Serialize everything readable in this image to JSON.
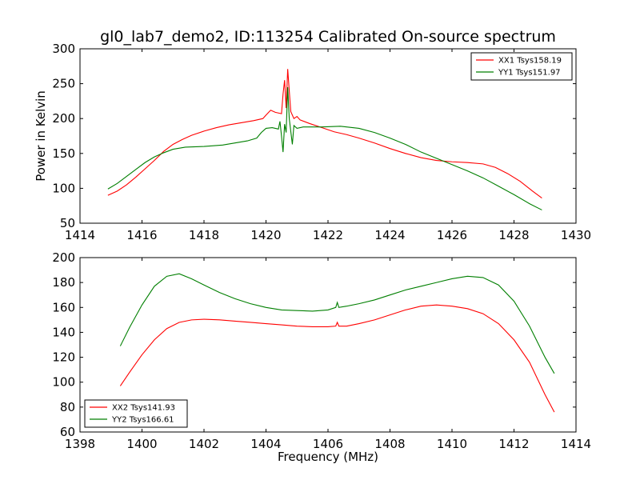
{
  "figure": {
    "title": "gl0_lab7_demo2, ID:113254 Calibrated On-source spectrum",
    "xlabel": "Frequency (MHz)"
  },
  "colors": {
    "red": "#ff0000",
    "green": "#007f00",
    "axes": "#000000"
  },
  "chart_data": [
    {
      "type": "line",
      "title": "gl0_lab7_demo2, ID:113254 Calibrated On-source spectrum",
      "xlabel": "",
      "ylabel": "Power in Kelvin",
      "xlim": [
        1414,
        1430
      ],
      "ylim": [
        50,
        300
      ],
      "xticks": [
        1414,
        1416,
        1418,
        1420,
        1422,
        1424,
        1426,
        1428,
        1430
      ],
      "yticks": [
        50,
        100,
        150,
        200,
        250,
        300
      ],
      "legend": "top-right",
      "grid": false,
      "series": [
        {
          "name": "XX1 Tsys158.19",
          "color": "#ff0000",
          "points": [
            [
              1414.9,
              90
            ],
            [
              1415.2,
              96
            ],
            [
              1415.5,
              105
            ],
            [
              1415.8,
              116
            ],
            [
              1416.1,
              128
            ],
            [
              1416.4,
              140
            ],
            [
              1416.7,
              153
            ],
            [
              1417.0,
              163
            ],
            [
              1417.3,
              170
            ],
            [
              1417.6,
              176
            ],
            [
              1418.0,
              182
            ],
            [
              1418.4,
              187
            ],
            [
              1418.8,
              191
            ],
            [
              1419.2,
              194
            ],
            [
              1419.6,
              197
            ],
            [
              1419.9,
              200
            ],
            [
              1420.0,
              205
            ],
            [
              1420.15,
              212
            ],
            [
              1420.3,
              209
            ],
            [
              1420.5,
              207
            ],
            [
              1420.55,
              235
            ],
            [
              1420.6,
              255
            ],
            [
              1420.65,
              215
            ],
            [
              1420.7,
              271
            ],
            [
              1420.75,
              240
            ],
            [
              1420.8,
              210
            ],
            [
              1420.9,
              200
            ],
            [
              1421.0,
              203
            ],
            [
              1421.1,
              198
            ],
            [
              1421.4,
              193
            ],
            [
              1421.8,
              187
            ],
            [
              1422.2,
              181
            ],
            [
              1422.6,
              177
            ],
            [
              1423.0,
              172
            ],
            [
              1423.5,
              165
            ],
            [
              1424.0,
              157
            ],
            [
              1424.5,
              150
            ],
            [
              1425.0,
              144
            ],
            [
              1425.5,
              140
            ],
            [
              1426.0,
              138
            ],
            [
              1426.5,
              137
            ],
            [
              1427.0,
              135
            ],
            [
              1427.4,
              130
            ],
            [
              1427.8,
              121
            ],
            [
              1428.2,
              110
            ],
            [
              1428.6,
              96
            ],
            [
              1428.9,
              86
            ]
          ]
        },
        {
          "name": "YY1 Tsys151.97",
          "color": "#007f00",
          "points": [
            [
              1414.9,
              99
            ],
            [
              1415.2,
              107
            ],
            [
              1415.5,
              117
            ],
            [
              1415.8,
              127
            ],
            [
              1416.1,
              137
            ],
            [
              1416.4,
              145
            ],
            [
              1416.7,
              151
            ],
            [
              1417.0,
              156
            ],
            [
              1417.4,
              159
            ],
            [
              1418.0,
              160
            ],
            [
              1418.6,
              162
            ],
            [
              1419.0,
              165
            ],
            [
              1419.4,
              168
            ],
            [
              1419.7,
              172
            ],
            [
              1419.85,
              180
            ],
            [
              1420.0,
              186
            ],
            [
              1420.2,
              187
            ],
            [
              1420.4,
              185
            ],
            [
              1420.45,
              196
            ],
            [
              1420.5,
              175
            ],
            [
              1420.55,
              152
            ],
            [
              1420.6,
              192
            ],
            [
              1420.65,
              180
            ],
            [
              1420.7,
              245
            ],
            [
              1420.75,
              200
            ],
            [
              1420.85,
              163
            ],
            [
              1420.9,
              190
            ],
            [
              1421.0,
              186
            ],
            [
              1421.2,
              188
            ],
            [
              1421.8,
              188
            ],
            [
              1422.4,
              189
            ],
            [
              1423.0,
              186
            ],
            [
              1423.5,
              180
            ],
            [
              1424.0,
              172
            ],
            [
              1424.5,
              163
            ],
            [
              1425.0,
              152
            ],
            [
              1425.5,
              143
            ],
            [
              1426.0,
              134
            ],
            [
              1426.5,
              125
            ],
            [
              1427.0,
              115
            ],
            [
              1427.5,
              103
            ],
            [
              1428.0,
              91
            ],
            [
              1428.5,
              78
            ],
            [
              1428.9,
              69
            ]
          ]
        }
      ]
    },
    {
      "type": "line",
      "title": "",
      "xlabel": "Frequency (MHz)",
      "ylabel": "",
      "xlim": [
        1398,
        1414
      ],
      "ylim": [
        60,
        200
      ],
      "xticks": [
        1398,
        1400,
        1402,
        1404,
        1406,
        1408,
        1410,
        1412,
        1414
      ],
      "yticks": [
        60,
        80,
        100,
        120,
        140,
        160,
        180,
        200
      ],
      "legend": "bottom-left",
      "grid": false,
      "series": [
        {
          "name": "XX2 Tsys141.93",
          "color": "#ff0000",
          "points": [
            [
              1399.3,
              97
            ],
            [
              1399.6,
              108
            ],
            [
              1400.0,
              122
            ],
            [
              1400.4,
              134
            ],
            [
              1400.8,
              143
            ],
            [
              1401.2,
              148
            ],
            [
              1401.6,
              150
            ],
            [
              1402.0,
              150.5
            ],
            [
              1402.5,
              150
            ],
            [
              1403.0,
              149
            ],
            [
              1403.5,
              148
            ],
            [
              1404.0,
              147
            ],
            [
              1404.5,
              146
            ],
            [
              1405.0,
              145
            ],
            [
              1405.5,
              144.5
            ],
            [
              1406.0,
              144.5
            ],
            [
              1406.25,
              145
            ],
            [
              1406.3,
              148
            ],
            [
              1406.35,
              145
            ],
            [
              1406.6,
              145
            ],
            [
              1407.0,
              147
            ],
            [
              1407.5,
              150
            ],
            [
              1408.0,
              154
            ],
            [
              1408.5,
              158
            ],
            [
              1409.0,
              161
            ],
            [
              1409.5,
              162
            ],
            [
              1410.0,
              161
            ],
            [
              1410.5,
              159
            ],
            [
              1411.0,
              155
            ],
            [
              1411.5,
              147
            ],
            [
              1412.0,
              134
            ],
            [
              1412.5,
              116
            ],
            [
              1413.0,
              90
            ],
            [
              1413.3,
              76
            ]
          ]
        },
        {
          "name": "YY2 Tsys166.61",
          "color": "#007f00",
          "points": [
            [
              1399.3,
              129
            ],
            [
              1399.6,
              144
            ],
            [
              1400.0,
              162
            ],
            [
              1400.4,
              177
            ],
            [
              1400.8,
              185
            ],
            [
              1401.2,
              187
            ],
            [
              1401.6,
              183
            ],
            [
              1402.0,
              178
            ],
            [
              1402.5,
              172
            ],
            [
              1403.0,
              167
            ],
            [
              1403.5,
              163
            ],
            [
              1404.0,
              160
            ],
            [
              1404.5,
              158
            ],
            [
              1405.0,
              157.5
            ],
            [
              1405.5,
              157
            ],
            [
              1406.0,
              158
            ],
            [
              1406.25,
              160
            ],
            [
              1406.3,
              164
            ],
            [
              1406.35,
              160
            ],
            [
              1406.6,
              161
            ],
            [
              1407.0,
              163
            ],
            [
              1407.5,
              166
            ],
            [
              1408.0,
              170
            ],
            [
              1408.5,
              174
            ],
            [
              1409.0,
              177
            ],
            [
              1409.5,
              180
            ],
            [
              1410.0,
              183
            ],
            [
              1410.5,
              185
            ],
            [
              1411.0,
              184
            ],
            [
              1411.5,
              178
            ],
            [
              1412.0,
              165
            ],
            [
              1412.5,
              145
            ],
            [
              1413.0,
              120
            ],
            [
              1413.3,
              107
            ]
          ]
        }
      ]
    }
  ]
}
